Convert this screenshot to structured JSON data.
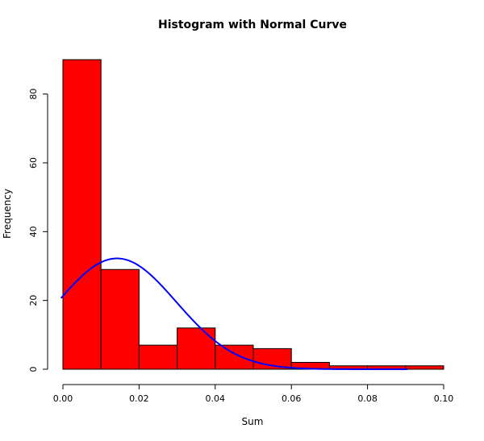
{
  "chart_data": {
    "type": "bar",
    "title": "Histogram with Normal Curve",
    "xlabel": "Sum",
    "ylabel": "Frequency",
    "bins": [
      {
        "x0": 0.0,
        "x1": 0.01,
        "count": 90
      },
      {
        "x0": 0.01,
        "x1": 0.02,
        "count": 29
      },
      {
        "x0": 0.02,
        "x1": 0.03,
        "count": 7
      },
      {
        "x0": 0.03,
        "x1": 0.04,
        "count": 12
      },
      {
        "x0": 0.04,
        "x1": 0.05,
        "count": 7
      },
      {
        "x0": 0.05,
        "x1": 0.06,
        "count": 6
      },
      {
        "x0": 0.06,
        "x1": 0.07,
        "count": 2
      },
      {
        "x0": 0.07,
        "x1": 0.08,
        "count": 1
      },
      {
        "x0": 0.08,
        "x1": 0.09,
        "count": 1
      },
      {
        "x0": 0.09,
        "x1": 0.1,
        "count": 1
      }
    ],
    "xlim": [
      0.0,
      0.1
    ],
    "ylim": [
      0,
      90
    ],
    "x_ticks": [
      "0.00",
      "0.02",
      "0.04",
      "0.06",
      "0.08",
      "0.10"
    ],
    "x_tick_values": [
      0.0,
      0.02,
      0.04,
      0.06,
      0.08,
      0.1
    ],
    "y_ticks": [
      "0",
      "20",
      "40",
      "60",
      "80"
    ],
    "y_tick_values": [
      0,
      20,
      40,
      60,
      80
    ],
    "normal_curve": {
      "mean": 0.0142,
      "sd": 0.0156,
      "scale": 1.26,
      "x_range": [
        -0.0005,
        0.0905
      ]
    },
    "grid": false,
    "bar_color": "#ff0000",
    "curve_color": "#0000ff"
  }
}
